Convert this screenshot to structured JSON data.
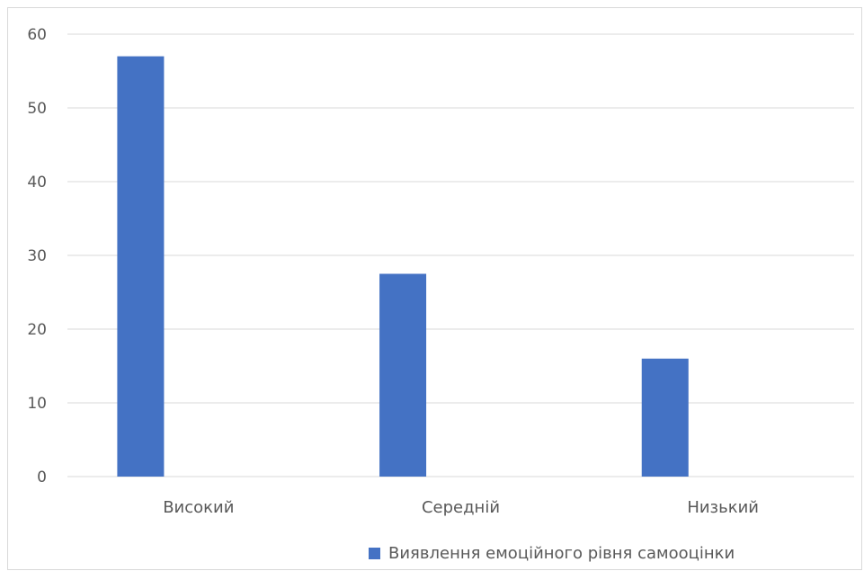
{
  "chart_data": {
    "type": "bar",
    "categories": [
      "Високий",
      "Середній",
      "Низький"
    ],
    "series": [
      {
        "name": "Виявлення емоційного рівня самооцінки",
        "values": [
          57,
          27.5,
          16
        ],
        "color": "#4472C4"
      }
    ],
    "title": "",
    "xlabel": "",
    "ylabel": "",
    "ylim": [
      0,
      60
    ],
    "yticks": [
      0,
      10,
      20,
      30,
      40,
      50,
      60
    ],
    "grid": true,
    "legend": "bottom-right"
  }
}
